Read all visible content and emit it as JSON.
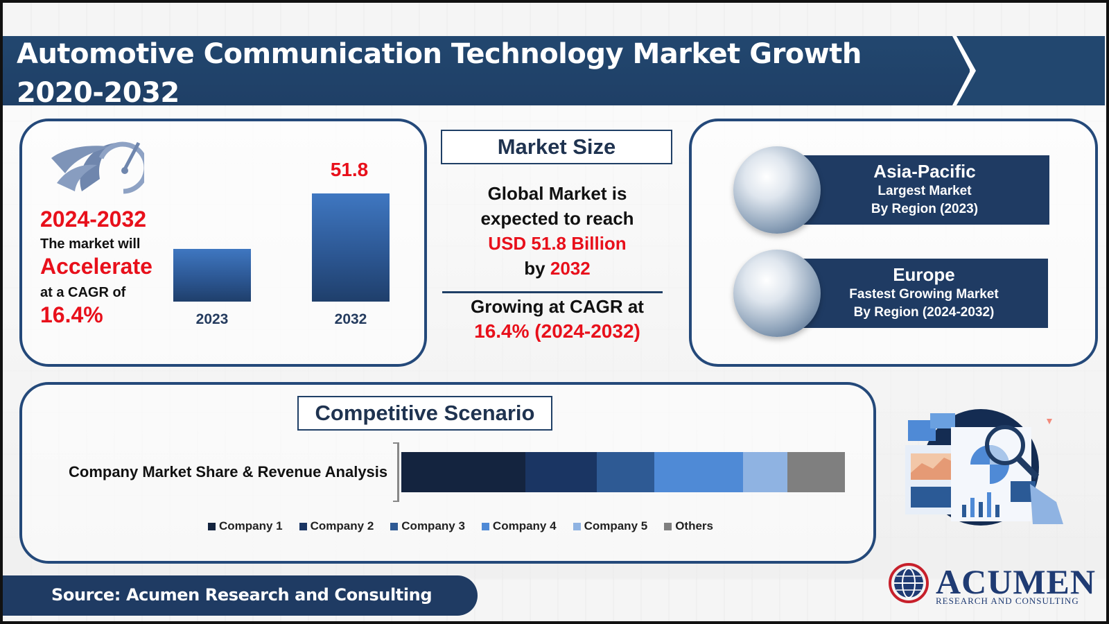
{
  "header": {
    "title": "Automotive Communication Technology Market Growth 2020-2032"
  },
  "left_panel": {
    "year_range": "2024-2032",
    "line1": "The market will",
    "accelerate": "Accelerate",
    "line2": "at a CAGR of",
    "cagr": "16.4%"
  },
  "market_size": {
    "title": "Market Size",
    "line1": "Global Market is",
    "line2": "expected to reach",
    "value": "USD 51.8 Billion",
    "by_prefix": "by",
    "by_year": "2032",
    "growing": "Growing at CAGR at",
    "cagr_text": "16.4% (2024-2032)"
  },
  "regions": [
    {
      "name": "Asia-Pacific",
      "sub1": "Largest Market",
      "sub2": "By Region (2023)"
    },
    {
      "name": "Europe",
      "sub1": "Fastest Growing Market",
      "sub2": "By Region (2024-2032)"
    }
  ],
  "competitive": {
    "title": "Competitive Scenario",
    "row_label": "Company Market Share & Revenue Analysis"
  },
  "source": "Source: Acumen Research and Consulting",
  "logo": {
    "main": "ACUMEN",
    "sub": "RESEARCH AND CONSULTING"
  },
  "colors": {
    "navy": "#1f3b63",
    "accent_red": "#e8101b",
    "company1": "#14243f",
    "company2": "#1a3563",
    "company3": "#2e5a94",
    "company4": "#4f8ad6",
    "company5": "#8fb3e2",
    "others": "#7f7f7f"
  },
  "chart_data": [
    {
      "type": "bar",
      "categories": [
        "2023",
        "2032"
      ],
      "values": [
        null,
        51.8
      ],
      "value_labels": [
        "",
        "51.8"
      ],
      "title": "",
      "xlabel": "",
      "ylabel": ""
    },
    {
      "type": "bar",
      "orientation": "horizontal-stacked",
      "categories": [
        "Company Market Share & Revenue Analysis"
      ],
      "series": [
        {
          "name": "Company 1",
          "values": [
            28
          ]
        },
        {
          "name": "Company 2",
          "values": [
            16
          ]
        },
        {
          "name": "Company 3",
          "values": [
            13
          ]
        },
        {
          "name": "Company 4",
          "values": [
            20
          ]
        },
        {
          "name": "Company 5",
          "values": [
            10
          ]
        },
        {
          "name": "Others",
          "values": [
            13
          ]
        }
      ],
      "legend": "bottom"
    }
  ]
}
